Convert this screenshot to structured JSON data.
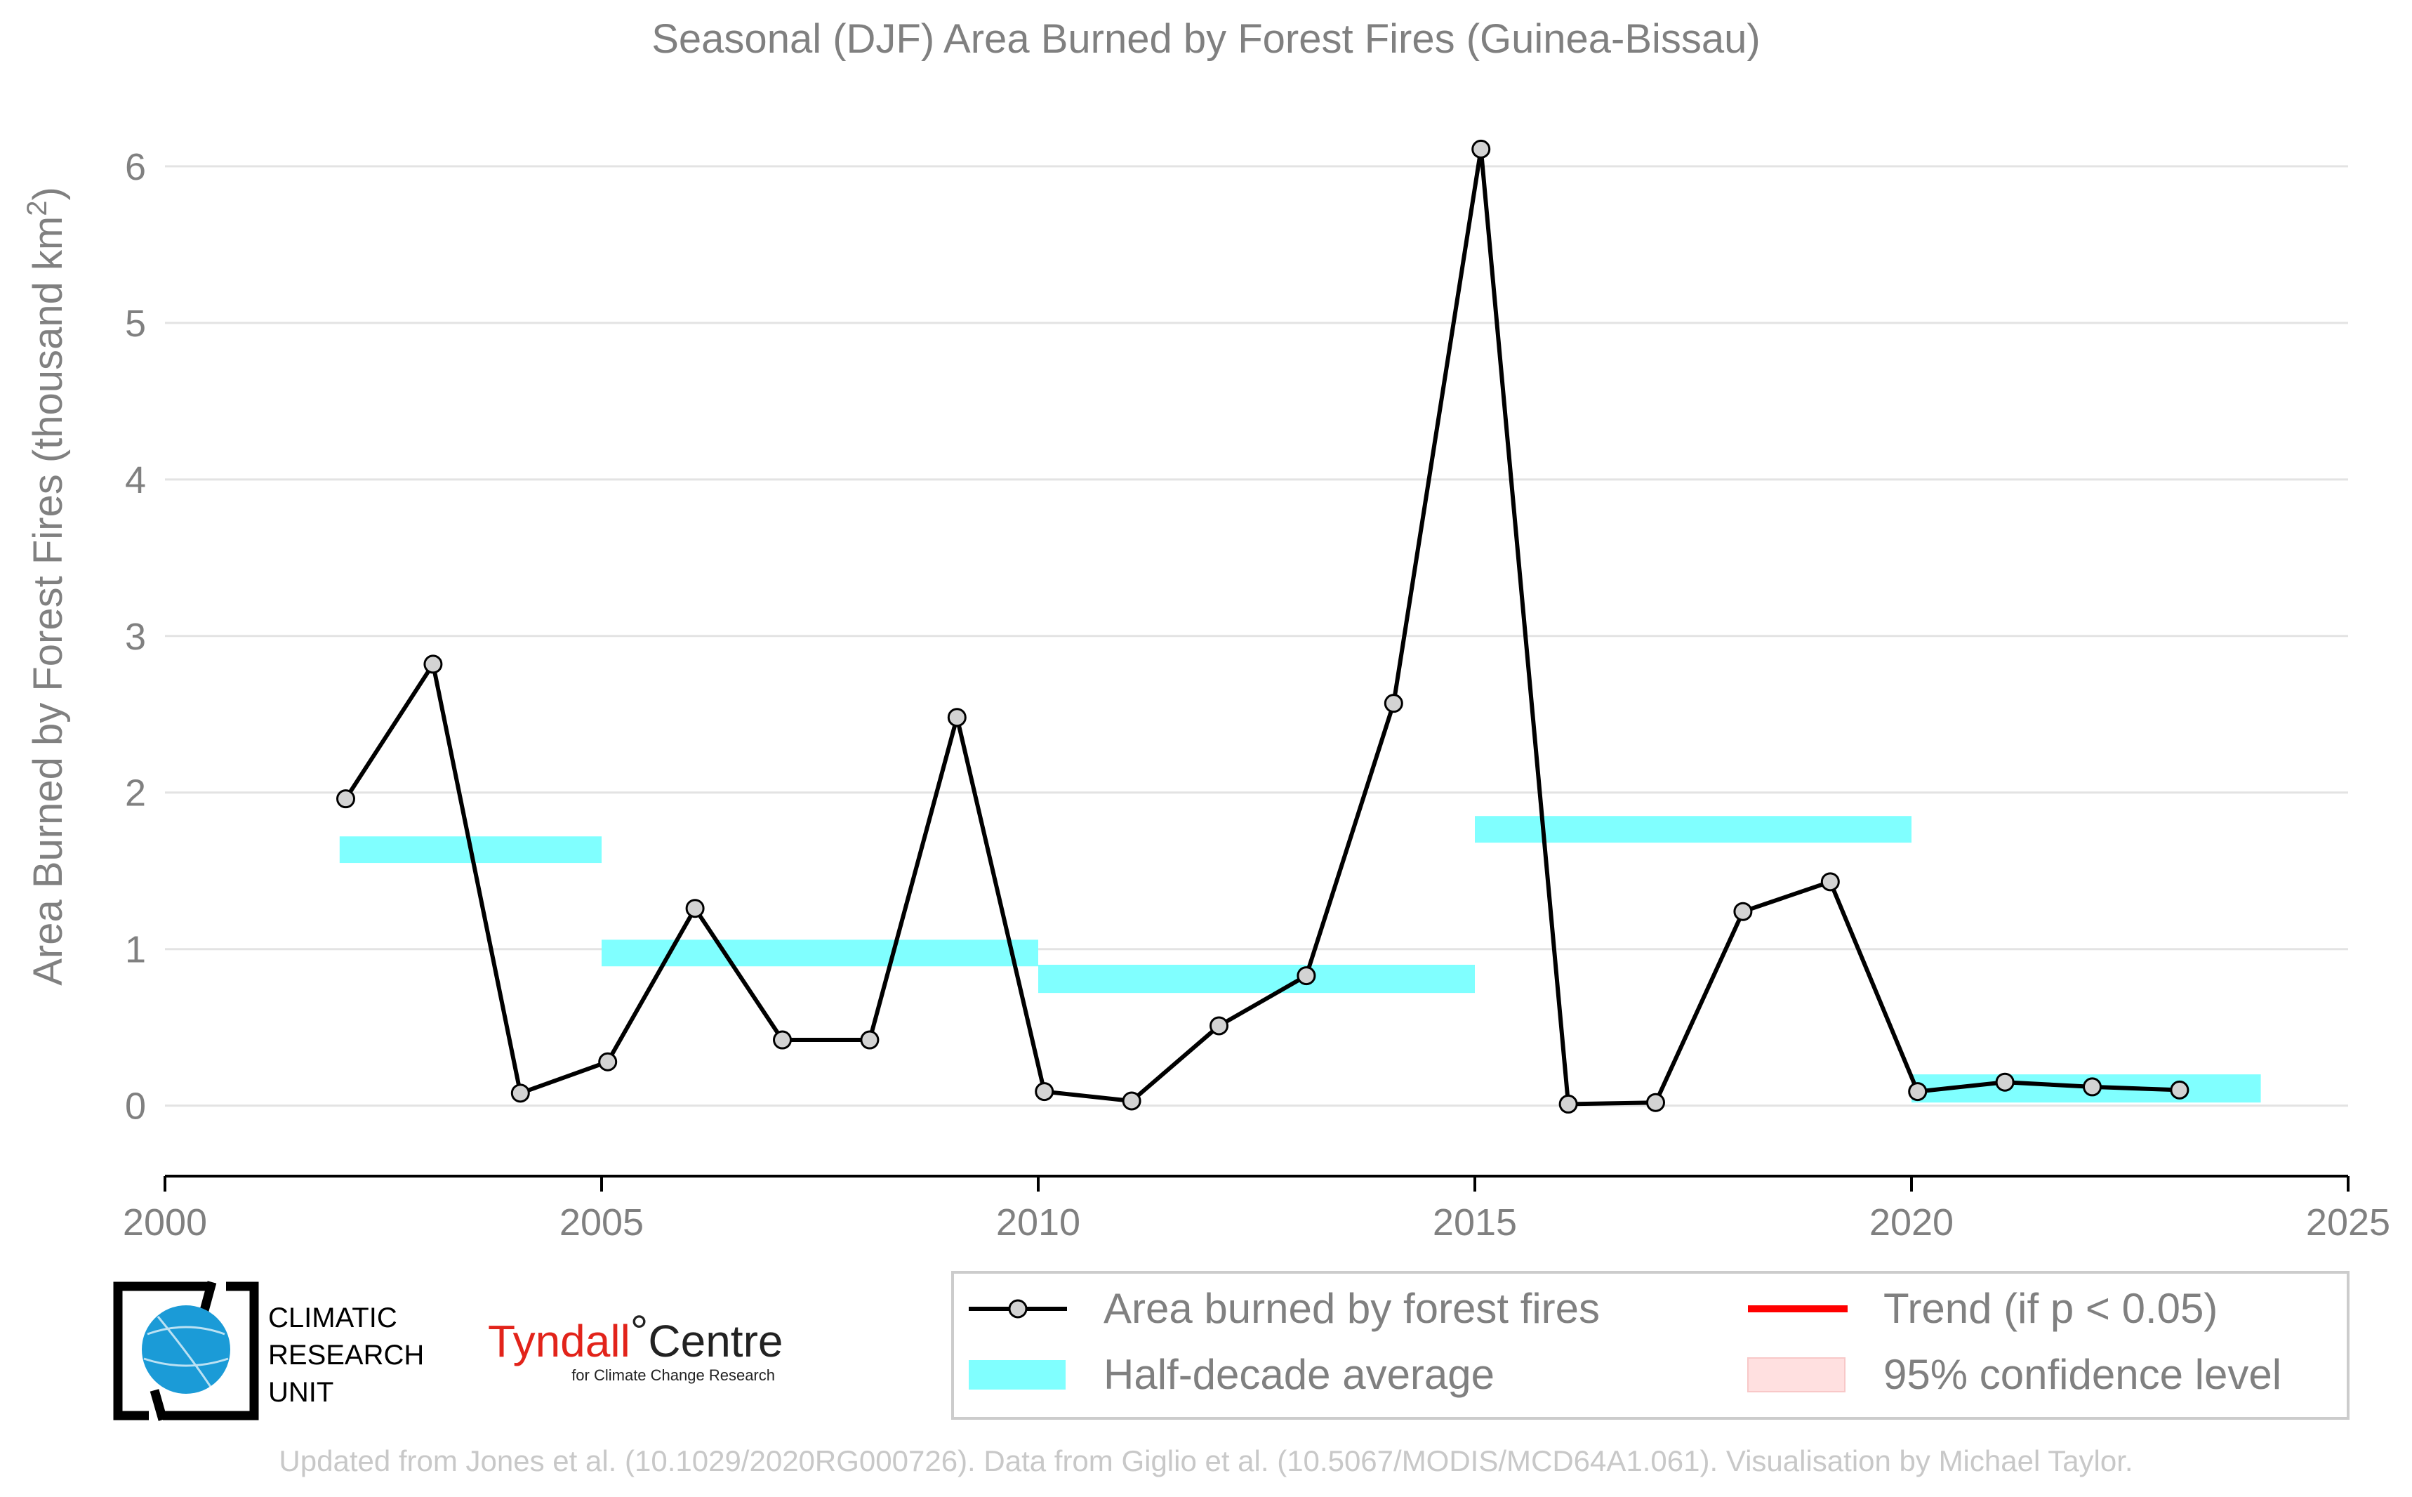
{
  "chart_data": {
    "type": "line",
    "title": "Seasonal (DJF) Area Burned by Forest Fires (Guinea-Bissau)",
    "ylabel_prefix": "Area Burned by Forest Fires (thousand km",
    "ylabel_sup": "2",
    "ylabel_suffix": ")",
    "xlabel": "",
    "xlim": [
      2000,
      2025
    ],
    "ylim": [
      -0.45,
      6.3
    ],
    "x_ticks": [
      2000,
      2005,
      2010,
      2015,
      2020,
      2025
    ],
    "y_ticks": [
      0,
      1,
      2,
      3,
      4,
      5,
      6
    ],
    "grid": "horizontal",
    "series": [
      {
        "name": "Area burned by forest fires",
        "color": "#000000",
        "marker_fill": "#d3d3d3",
        "x": [
          2002,
          2003,
          2004,
          2005,
          2006,
          2007,
          2008,
          2009,
          2010,
          2011,
          2012,
          2013,
          2014,
          2015,
          2016,
          2017,
          2018,
          2019,
          2020,
          2021,
          2022,
          2023
        ],
        "values": [
          1.96,
          2.82,
          0.08,
          0.28,
          1.26,
          0.42,
          0.42,
          2.48,
          0.09,
          0.03,
          0.51,
          0.83,
          2.57,
          6.11,
          0.01,
          0.02,
          1.24,
          1.43,
          0.09,
          0.15,
          0.12,
          0.1
        ]
      }
    ],
    "half_decade_average": {
      "name": "Half-decade average",
      "color": "#80ffff",
      "bands": [
        {
          "x0": 2002,
          "x1": 2005,
          "y0": 1.55,
          "y1": 1.72
        },
        {
          "x0": 2005,
          "x1": 2010,
          "y0": 0.89,
          "y1": 1.06
        },
        {
          "x0": 2010,
          "x1": 2015,
          "y0": 0.72,
          "y1": 0.9
        },
        {
          "x0": 2015,
          "x1": 2020,
          "y0": 1.68,
          "y1": 1.85
        },
        {
          "x0": 2020,
          "x1": 2024,
          "y0": 0.02,
          "y1": 0.2
        }
      ]
    },
    "legend_position": "bottom-right",
    "legend": [
      {
        "label": "Area burned by forest fires",
        "kind": "line-marker",
        "color": "#000000"
      },
      {
        "label": "Trend (if p < 0.05)",
        "kind": "line",
        "color": "#ff0000"
      },
      {
        "label": "Half-decade average",
        "kind": "band",
        "color": "#80ffff"
      },
      {
        "label": "95% confidence level",
        "kind": "band",
        "color": "#ffe0e0"
      }
    ]
  },
  "logos": {
    "cru_lines": [
      "CLIMATIC",
      "RESEARCH",
      "UNIT"
    ],
    "tyndall_main": "Tyndall",
    "tyndall_degree": "°",
    "tyndall_centre": "Centre",
    "tyndall_sub": "for Climate Change Research"
  },
  "footer": "Updated from Jones et al. (10.1029/2020RG000726). Data from Giglio et al. (10.5067/MODIS/MCD64A1.061). Visualisation by Michael Taylor."
}
